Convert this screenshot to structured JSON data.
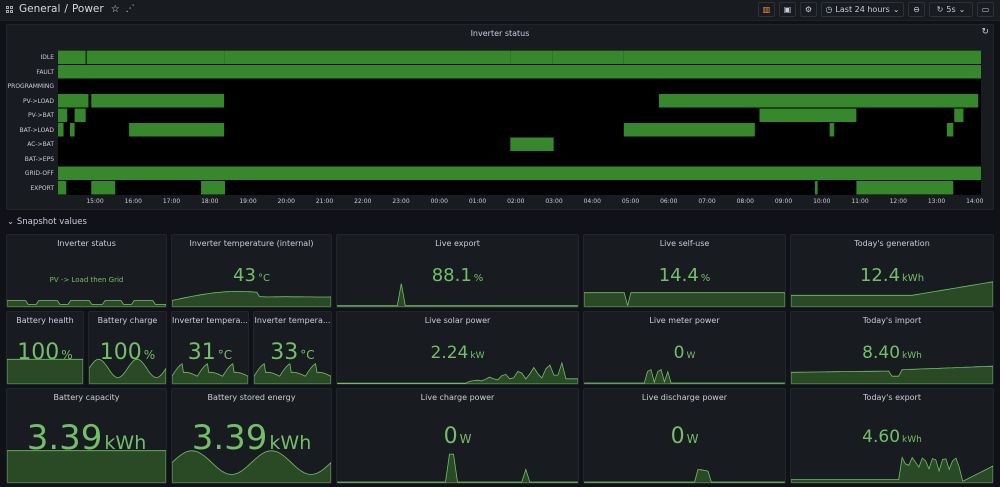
{
  "header": {
    "folder": "General",
    "separator": "/",
    "dashboard": "Power",
    "time_range": "Last 24 hours",
    "refresh_interval": "5s"
  },
  "inverter_status_panel": {
    "title": "Inverter status",
    "states": [
      "IDLE",
      "FAULT",
      "PROGRAMMING",
      "PV->LOAD",
      "PV->BAT",
      "BAT->LOAD",
      "AC->BAT",
      "BAT->EPS",
      "GRID-OFF",
      "EXPORT"
    ],
    "time_ticks": [
      "15:00",
      "16:00",
      "17:00",
      "18:00",
      "19:00",
      "20:00",
      "21:00",
      "22:00",
      "23:00",
      "00:00",
      "01:00",
      "02:00",
      "03:00",
      "04:00",
      "05:00",
      "06:00",
      "07:00",
      "08:00",
      "09:00",
      "10:00",
      "11:00",
      "12:00",
      "13:00",
      "14:00"
    ],
    "bar_color": "#37872d"
  },
  "row": {
    "title": "Snapshot values"
  },
  "stats": {
    "inverter_status": {
      "title": "Inverter status",
      "value": "PV -> Load then Grid"
    },
    "inverter_temp_internal": {
      "title": "Inverter temperature (internal)",
      "value": "43",
      "unit": "°C"
    },
    "live_export": {
      "title": "Live export",
      "value": "88.1",
      "unit": "%"
    },
    "live_self_use": {
      "title": "Live self-use",
      "value": "14.4",
      "unit": "%"
    },
    "todays_generation": {
      "title": "Today's generation",
      "value": "12.4",
      "unit": "kWh"
    },
    "battery_health": {
      "title": "Battery health",
      "value": "100",
      "unit": "%"
    },
    "battery_charge": {
      "title": "Battery charge",
      "value": "100",
      "unit": "%"
    },
    "inverter_temp_a": {
      "title": "Inverter tempera...",
      "value": "31",
      "unit": "°C"
    },
    "inverter_temp_b": {
      "title": "Inverter tempera...",
      "value": "33",
      "unit": "°C"
    },
    "live_solar_power": {
      "title": "Live solar power",
      "value": "2.24",
      "unit": "kW"
    },
    "live_meter_power": {
      "title": "Live meter power",
      "value": "0",
      "unit": "W"
    },
    "todays_import": {
      "title": "Today's import",
      "value": "8.40",
      "unit": "kWh"
    },
    "battery_capacity": {
      "title": "Battery capacity",
      "value": "3.39",
      "unit": "kWh"
    },
    "battery_stored_energy": {
      "title": "Battery stored energy",
      "value": "3.39",
      "unit": "kWh"
    },
    "live_charge_power": {
      "title": "Live charge power",
      "value": "0",
      "unit": "W"
    },
    "live_discharge_power": {
      "title": "Live discharge power",
      "value": "0",
      "unit": "W"
    },
    "todays_export": {
      "title": "Today's export",
      "value": "4.60",
      "unit": "kWh"
    }
  },
  "colors": {
    "value_green": "#73bf69",
    "spark_fill": "#2a4a26",
    "panel_bg": "#181b1f"
  }
}
